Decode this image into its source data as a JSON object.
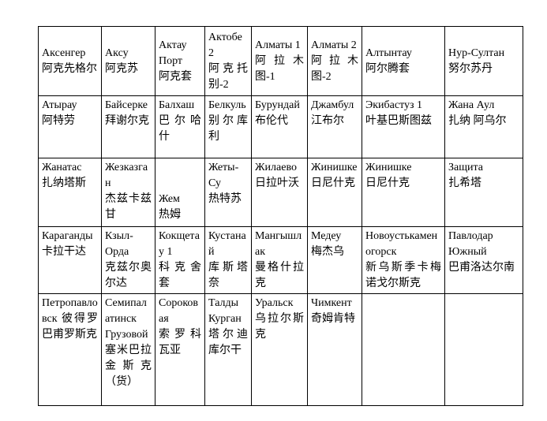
{
  "colors": {
    "background": "#ffffff",
    "border": "#000000",
    "text": "#000000"
  },
  "table": {
    "description": "Table of railway station names: Russian name with Chinese transliteration",
    "rows": [
      [
        [
          "Аксенгер",
          "阿克先格尔"
        ],
        [
          "Аксу",
          "阿克苏"
        ],
        [
          "Актау Порт",
          "阿克套"
        ],
        [
          "Актобе 2",
          "阿克托别-2"
        ],
        [
          "Алматы 1",
          "阿拉木图-1"
        ],
        [
          "Алматы 2",
          "阿拉木图-2"
        ],
        [
          "Алтынтау",
          "阿尔腾套"
        ],
        [
          "Нур-Султан",
          "努尔苏丹"
        ]
      ],
      [
        [
          "Атырау",
          "阿特劳"
        ],
        [
          "Байсерке",
          "拜谢尔克"
        ],
        [
          "Балхаш",
          "巴尔哈什"
        ],
        [
          "Белкуль",
          "别尔库利"
        ],
        [
          "Бурундай",
          "布伦代"
        ],
        [
          "Джамбул",
          "江布尔"
        ],
        [
          "Экибастуз 1",
          "叶基巴斯图兹"
        ],
        [
          "Жана Аул",
          "扎纳 阿乌尔"
        ]
      ],
      [
        [
          "Жанатас",
          "扎纳塔斯"
        ],
        [
          "Жезказган",
          "杰兹卡兹甘"
        ],
        [
          "",
          "",
          "Жем",
          "热姆"
        ],
        [
          "Жеты-Су",
          "热特苏"
        ],
        [
          "Жилаево",
          "日拉叶沃"
        ],
        [
          "Жинишке",
          "日尼什克"
        ],
        [
          "Жинишке",
          "日尼什克"
        ],
        [
          "Защита",
          "扎希塔"
        ]
      ],
      [
        [
          "Караганды",
          "卡拉干达"
        ],
        [
          "Кзыл-Орда",
          "克兹尔奥尔达"
        ],
        [
          "Кокщетау 1",
          "科克舍套"
        ],
        [
          "Кустанай",
          "库斯塔奈"
        ],
        [
          "Мангышлак",
          "曼格什拉克"
        ],
        [
          "Медеу",
          "梅杰乌"
        ],
        [
          "Новоустькаменогорск",
          "新乌斯季卡梅诺戈尔斯克"
        ],
        [
          "Павлодар Южный",
          "巴甫洛达尔南"
        ]
      ],
      [
        [
          "Петропавловск 彼得罗巴甫罗斯克"
        ],
        [
          "Семипалатинск Грузовой",
          "塞米巴拉金斯克（货）"
        ],
        [
          "Сороковая",
          "索罗科瓦亚"
        ],
        [
          "Талды Курган",
          "塔尔迪库尔干"
        ],
        [
          "Уральск",
          "乌拉尔斯克"
        ],
        [
          "Чимкент",
          "奇姆肯特"
        ],
        [],
        []
      ]
    ]
  }
}
